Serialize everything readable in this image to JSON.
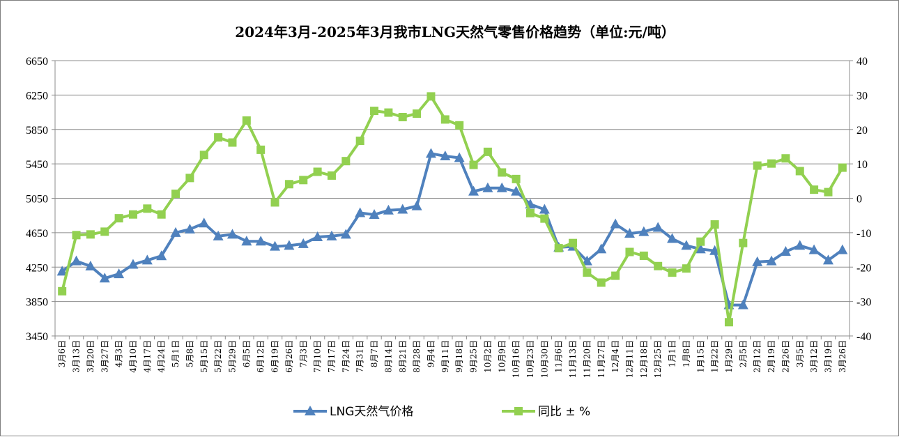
{
  "chart_data": {
    "type": "line",
    "title": "2024年3月-2025年3月我市LNG天然气零售价格趋势（单位:元/吨）",
    "categories": [
      "3月6日",
      "3月13日",
      "3月20日",
      "3月27日",
      "4月3日",
      "4月10日",
      "4月17日",
      "4月24日",
      "5月1日",
      "5月8日",
      "5月15日",
      "5月22日",
      "5月29日",
      "6月5日",
      "6月12日",
      "6月19日",
      "6月26日",
      "7月3日",
      "7月10日",
      "7月17日",
      "7月24日",
      "7月31日",
      "8月7日",
      "8月14日",
      "8月21日",
      "8月28日",
      "9月4日",
      "9月11日",
      "9月18日",
      "9月25日",
      "10月2日",
      "10月9日",
      "10月16日",
      "10月23日",
      "10月30日",
      "11月6日",
      "11月13日",
      "11月20日",
      "11月27日",
      "12月4日",
      "12月11日",
      "12月18日",
      "12月25日",
      "1月1日",
      "1月8日",
      "1月15日",
      "1月22日",
      "1月29日",
      "2月5日",
      "2月12日",
      "2月19日",
      "2月26日",
      "3月5日",
      "3月12日",
      "3月19日",
      "3月26日"
    ],
    "series": [
      {
        "name": "LNG天然气价格",
        "axis": "left",
        "color": "#4f81bd",
        "marker": "triangle",
        "values": [
          4200,
          4320,
          4260,
          4120,
          4170,
          4280,
          4330,
          4380,
          4650,
          4690,
          4760,
          4610,
          4630,
          4550,
          4550,
          4490,
          4500,
          4520,
          4600,
          4610,
          4630,
          4880,
          4860,
          4910,
          4920,
          4960,
          5570,
          5540,
          5520,
          5130,
          5170,
          5170,
          5130,
          4980,
          4920,
          4480,
          4490,
          4320,
          4460,
          4750,
          4640,
          4660,
          4710,
          4580,
          4500,
          4460,
          4440,
          3810,
          3810,
          4310,
          4320,
          4430,
          4500,
          4450,
          4330,
          4450
        ]
      },
      {
        "name": "同比±%",
        "axis": "right",
        "color": "#92d050",
        "marker": "square",
        "values": [
          -27.0,
          -10.7,
          -10.5,
          -9.7,
          -5.8,
          -4.7,
          -3.0,
          -4.7,
          1.3,
          5.9,
          12.6,
          17.7,
          16.2,
          22.6,
          14.1,
          -1.2,
          4.1,
          5.3,
          7.7,
          6.6,
          10.8,
          16.7,
          25.4,
          24.9,
          23.6,
          24.6,
          29.6,
          22.9,
          21.2,
          9.7,
          13.5,
          7.5,
          5.6,
          -4.3,
          -5.9,
          -14.5,
          -13.0,
          -21.6,
          -24.5,
          -22.5,
          -15.6,
          -16.7,
          -19.7,
          -21.6,
          -20.4,
          -12.6,
          -7.6,
          -36.0,
          -13.0,
          9.5,
          10.1,
          11.6,
          7.9,
          2.5,
          1.8,
          8.9
        ]
      }
    ],
    "y_left": {
      "min": 3450,
      "max": 6650,
      "step": 400,
      "ticks": [
        "3450",
        "3850",
        "4250",
        "4650",
        "5050",
        "5450",
        "5850",
        "6250",
        "6650"
      ]
    },
    "y_right": {
      "min": -40,
      "max": 40,
      "step": 10,
      "ticks": [
        "-40",
        "-30",
        "-20",
        "-10",
        "0",
        "10",
        "20",
        "30",
        "40"
      ]
    },
    "grid": true,
    "legend_position": "bottom",
    "legend": [
      "LNG天然气价格",
      "同比 ± %"
    ]
  }
}
